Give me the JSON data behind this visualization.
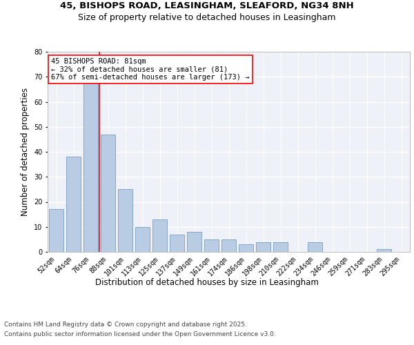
{
  "title1": "45, BISHOPS ROAD, LEASINGHAM, SLEAFORD, NG34 8NH",
  "title2": "Size of property relative to detached houses in Leasingham",
  "xlabel": "Distribution of detached houses by size in Leasingham",
  "ylabel": "Number of detached properties",
  "footer1": "Contains HM Land Registry data © Crown copyright and database right 2025.",
  "footer2": "Contains public sector information licensed under the Open Government Licence v3.0.",
  "annotation_line1": "45 BISHOPS ROAD: 81sqm",
  "annotation_line2": "← 32% of detached houses are smaller (81)",
  "annotation_line3": "67% of semi-detached houses are larger (173) →",
  "bar_color": "#b8cce4",
  "bar_edge_color": "#7a9cbf",
  "vline_color": "red",
  "vline_x_index": 2,
  "categories": [
    "52sqm",
    "64sqm",
    "76sqm",
    "88sqm",
    "101sqm",
    "113sqm",
    "125sqm",
    "137sqm",
    "149sqm",
    "161sqm",
    "174sqm",
    "186sqm",
    "198sqm",
    "210sqm",
    "222sqm",
    "234sqm",
    "246sqm",
    "259sqm",
    "271sqm",
    "283sqm",
    "295sqm"
  ],
  "values": [
    17,
    38,
    68,
    47,
    25,
    10,
    13,
    7,
    8,
    5,
    5,
    3,
    4,
    4,
    0,
    4,
    0,
    0,
    0,
    1,
    0
  ],
  "ylim": [
    0,
    80
  ],
  "yticks": [
    0,
    10,
    20,
    30,
    40,
    50,
    60,
    70,
    80
  ],
  "background_color": "#eef2f8",
  "grid_color": "#ffffff",
  "title_fontsize": 9.5,
  "subtitle_fontsize": 9,
  "axis_label_fontsize": 8.5,
  "tick_fontsize": 7,
  "annotation_fontsize": 7.5,
  "footer_fontsize": 6.5,
  "fig_bg": "#ffffff"
}
